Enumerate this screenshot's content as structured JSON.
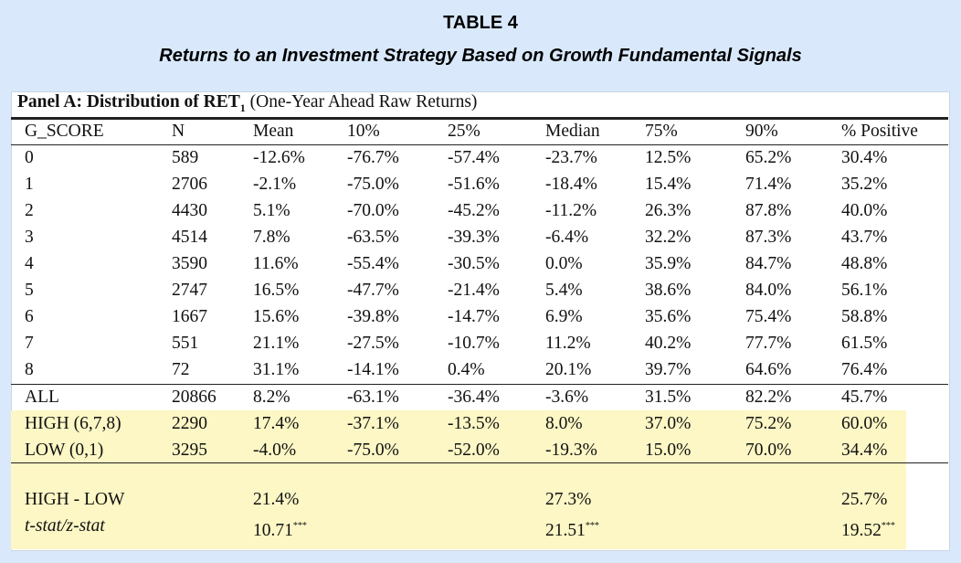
{
  "title": "TABLE 4",
  "subtitle": "Returns to an Investment Strategy Based on Growth Fundamental Signals",
  "panel": {
    "title_bold": "Panel A: Distribution of RET",
    "title_sub": "1",
    "title_rest": " (One-Year Ahead Raw Returns)"
  },
  "columns": [
    "G_SCORE",
    "N",
    "Mean",
    "10%",
    "25%",
    "Median",
    "75%",
    "90%",
    "% Positive"
  ],
  "rows": [
    [
      "0",
      "589",
      "-12.6%",
      "-76.7%",
      "-57.4%",
      "-23.7%",
      "12.5%",
      "65.2%",
      "30.4%"
    ],
    [
      "1",
      "2706",
      "-2.1%",
      "-75.0%",
      "-51.6%",
      "-18.4%",
      "15.4%",
      "71.4%",
      "35.2%"
    ],
    [
      "2",
      "4430",
      "5.1%",
      "-70.0%",
      "-45.2%",
      "-11.2%",
      "26.3%",
      "87.8%",
      "40.0%"
    ],
    [
      "3",
      "4514",
      "7.8%",
      "-63.5%",
      "-39.3%",
      "-6.4%",
      "32.2%",
      "87.3%",
      "43.7%"
    ],
    [
      "4",
      "3590",
      "11.6%",
      "-55.4%",
      "-30.5%",
      "0.0%",
      "35.9%",
      "84.7%",
      "48.8%"
    ],
    [
      "5",
      "2747",
      "16.5%",
      "-47.7%",
      "-21.4%",
      "5.4%",
      "38.6%",
      "84.0%",
      "56.1%"
    ],
    [
      "6",
      "1667",
      "15.6%",
      "-39.8%",
      "-14.7%",
      "6.9%",
      "35.6%",
      "75.4%",
      "58.8%"
    ],
    [
      "7",
      "551",
      "21.1%",
      "-27.5%",
      "-10.7%",
      "11.2%",
      "40.2%",
      "77.7%",
      "61.5%"
    ],
    [
      "8",
      "72",
      "31.1%",
      "-14.1%",
      "0.4%",
      "20.1%",
      "39.7%",
      "64.6%",
      "76.4%"
    ]
  ],
  "summary_rows": [
    [
      "ALL",
      "20866",
      "8.2%",
      "-63.1%",
      "-36.4%",
      "-3.6%",
      "31.5%",
      "82.2%",
      "45.7%"
    ],
    [
      "HIGH (6,7,8)",
      "2290",
      "17.4%",
      "-37.1%",
      "-13.5%",
      "8.0%",
      "37.0%",
      "75.2%",
      "60.0%"
    ],
    [
      "LOW (0,1)",
      "3295",
      "-4.0%",
      "-75.0%",
      "-52.0%",
      "-19.3%",
      "15.0%",
      "70.0%",
      "34.4%"
    ]
  ],
  "diff_row": {
    "label": "HIGH - LOW",
    "mean": "21.4%",
    "median": "27.3%",
    "pct_positive": "25.7%"
  },
  "stat_row": {
    "label": "t-stat/z-stat",
    "mean": "10.71",
    "median": "21.51",
    "pct_positive": "19.52",
    "stars": "***"
  },
  "colors": {
    "background": "#d9e9fb",
    "highlight": "#fcf7c5"
  }
}
